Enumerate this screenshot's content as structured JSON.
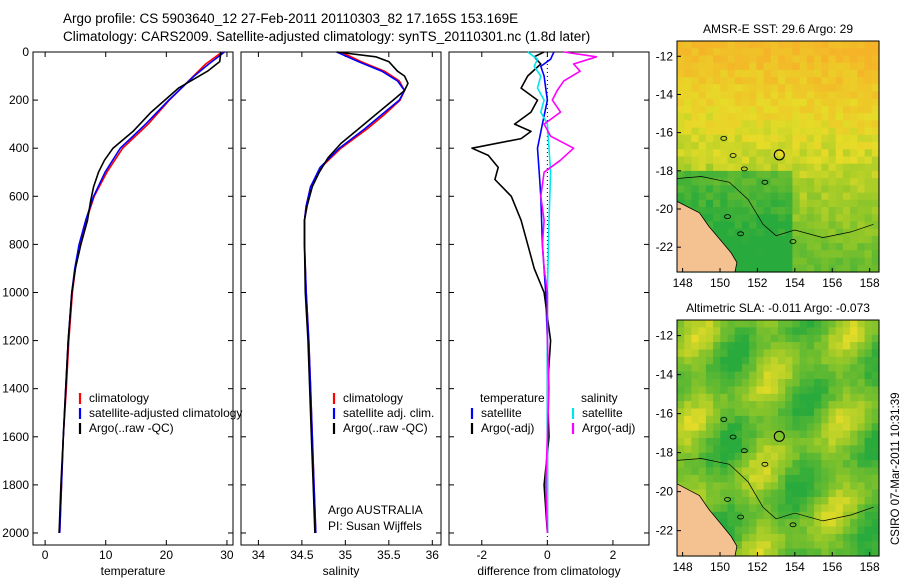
{
  "figure": {
    "title_line1": "Argo profile: CS 5903640_12 27-Feb-2011 20110303_82 17.165S 153.169E",
    "title_line2": "Climatology: CARS2009. Satellite-adjusted climatology: synTS_20110301.nc (1.8d later)",
    "credit": "CSIRO 07-Mar-2011 10:31:39",
    "colors": {
      "climatology": "#ff0000",
      "satellite": "#0000ff",
      "argo": "#000000",
      "sat_salinity": "#00e5ee",
      "argo_salinity": "#ff00ff",
      "land": "#f4c290"
    }
  },
  "chart_data": [
    {
      "type": "line",
      "name": "temperature",
      "xlabel": "temperature",
      "xlim": [
        -2,
        31
      ],
      "xticks": [
        0,
        10,
        20,
        30
      ],
      "ylim": [
        0,
        2050
      ],
      "y_reversed": true,
      "yticks": [
        0,
        200,
        400,
        600,
        800,
        1000,
        1200,
        1400,
        1600,
        1800,
        2000
      ],
      "legend": [
        "climatology",
        "satellite-adjusted climatology",
        "Argo(..raw -QC)"
      ],
      "series": [
        {
          "name": "climatology",
          "color_key": "climatology",
          "y": [
            0,
            50,
            100,
            200,
            300,
            400,
            500,
            600,
            700,
            800,
            900,
            1000,
            1200,
            1400,
            1600,
            1800,
            2000
          ],
          "x": [
            29.2,
            26.5,
            24.5,
            20.5,
            17.0,
            12.8,
            10.2,
            8.1,
            6.8,
            5.7,
            5.0,
            4.5,
            3.9,
            3.5,
            3.0,
            2.7,
            2.4
          ]
        },
        {
          "name": "satellite",
          "color_key": "satellite",
          "y": [
            0,
            50,
            100,
            200,
            300,
            400,
            500,
            600,
            700,
            800,
            900,
            1000,
            1200,
            1400,
            1600,
            1800,
            2000
          ],
          "x": [
            29.6,
            27.0,
            24.6,
            20.4,
            16.6,
            12.4,
            9.9,
            8.0,
            6.7,
            5.6,
            4.9,
            4.4,
            3.8,
            3.4,
            3.0,
            2.7,
            2.4
          ]
        },
        {
          "name": "argo",
          "color_key": "argo",
          "y": [
            0,
            40,
            80,
            150,
            250,
            330,
            400,
            450,
            500,
            560,
            620,
            700,
            800,
            900,
            1000,
            1200,
            1400,
            1600,
            1800,
            2000
          ],
          "x": [
            29.0,
            28.8,
            26.8,
            22.0,
            17.5,
            14.5,
            11.2,
            9.8,
            8.8,
            8.0,
            7.5,
            7.0,
            5.9,
            5.0,
            4.4,
            3.8,
            3.4,
            3.0,
            2.6,
            2.3
          ]
        }
      ]
    },
    {
      "type": "line",
      "name": "salinity",
      "xlabel": "salinity",
      "xlim": [
        33.8,
        36.1
      ],
      "xticks": [
        34,
        34.5,
        35,
        35.5,
        36
      ],
      "ylim": [
        0,
        2050
      ],
      "y_reversed": true,
      "legend": [
        "climatology",
        "satellite adj. clim.",
        "Argo(..raw -QC)"
      ],
      "annotation": [
        "Argo AUSTRALIA",
        "PI: Susan Wijffels"
      ],
      "series": [
        {
          "name": "climatology",
          "color_key": "climatology",
          "y": [
            0,
            40,
            80,
            120,
            160,
            200,
            260,
            320,
            400,
            480,
            560,
            640,
            700,
            800,
            1000,
            1200,
            1400,
            1600,
            1800,
            2000
          ],
          "x": [
            34.95,
            35.18,
            35.45,
            35.62,
            35.68,
            35.63,
            35.45,
            35.25,
            34.95,
            34.72,
            34.6,
            34.55,
            34.53,
            34.53,
            34.55,
            34.58,
            34.6,
            34.62,
            34.64,
            34.66
          ]
        },
        {
          "name": "satellite",
          "color_key": "satellite",
          "y": [
            0,
            40,
            80,
            120,
            160,
            200,
            260,
            320,
            400,
            480,
            560,
            640,
            700,
            800,
            1000,
            1200,
            1400,
            1600,
            1800,
            2000
          ],
          "x": [
            34.9,
            35.15,
            35.42,
            35.6,
            35.68,
            35.62,
            35.42,
            35.22,
            34.93,
            34.71,
            34.6,
            34.55,
            34.53,
            34.53,
            34.55,
            34.58,
            34.6,
            34.62,
            34.64,
            34.66
          ]
        },
        {
          "name": "argo",
          "color_key": "argo",
          "y": [
            0,
            20,
            40,
            60,
            80,
            100,
            130,
            160,
            200,
            260,
            320,
            380,
            440,
            500,
            560,
            640,
            700,
            800,
            1000,
            1200,
            1400,
            1600,
            1800,
            2000
          ],
          "x": [
            34.9,
            35.35,
            35.5,
            35.55,
            35.6,
            35.68,
            35.72,
            35.68,
            35.55,
            35.35,
            35.15,
            34.95,
            34.8,
            34.7,
            34.62,
            34.56,
            34.53,
            34.53,
            34.54,
            34.57,
            34.59,
            34.61,
            34.63,
            34.65
          ]
        }
      ]
    },
    {
      "type": "line",
      "name": "difference",
      "xlabel": "difference from climatology",
      "xlim": [
        -3,
        3.1
      ],
      "xticks": [
        -2,
        0,
        2
      ],
      "ylim": [
        0,
        2050
      ],
      "y_reversed": true,
      "legend_headers": [
        "temperature",
        "salinity"
      ],
      "legend": [
        "satellite",
        "Argo(-adj)",
        "satellite",
        "Argo(-adj)"
      ],
      "series": [
        {
          "name": "temp satellite",
          "color_key": "satellite",
          "y": [
            0,
            30,
            60,
            100,
            150,
            200,
            300,
            400,
            500,
            600,
            800,
            1000,
            1200,
            1500,
            1800,
            2000
          ],
          "x": [
            0.2,
            0.1,
            -0.2,
            -0.1,
            -0.05,
            0,
            -0.15,
            -0.3,
            -0.25,
            -0.2,
            -0.15,
            -0.05,
            0,
            0,
            0,
            0
          ]
        },
        {
          "name": "temp argo",
          "color_key": "argo",
          "y": [
            0,
            20,
            50,
            100,
            150,
            200,
            250,
            300,
            330,
            360,
            400,
            430,
            480,
            530,
            600,
            700,
            800,
            900,
            1000,
            1200,
            1400,
            1600,
            1800,
            2000
          ],
          "x": [
            -0.1,
            -0.4,
            -0.2,
            -0.6,
            -0.8,
            -0.3,
            -0.5,
            -1.0,
            -0.5,
            -0.8,
            -2.3,
            -1.8,
            -1.5,
            -1.6,
            -1.1,
            -0.8,
            -0.6,
            -0.4,
            -0.1,
            0.1,
            0,
            0.05,
            -0.1,
            0
          ]
        },
        {
          "name": "sal satellite",
          "color_key": "sat_salinity",
          "y": [
            0,
            30,
            60,
            100,
            150,
            200,
            250,
            300,
            400,
            500,
            700,
            1000,
            1400,
            1800,
            2000
          ],
          "x": [
            -0.6,
            -0.3,
            -0.4,
            -0.2,
            -0.3,
            -0.1,
            -0.2,
            0,
            0.05,
            0.1,
            0.05,
            0,
            0,
            0,
            0
          ]
        },
        {
          "name": "sal argo",
          "color_key": "argo_salinity",
          "y": [
            0,
            20,
            50,
            80,
            120,
            160,
            200,
            250,
            300,
            350,
            400,
            450,
            500,
            600,
            700,
            800,
            900,
            1000,
            1200,
            1400,
            1800,
            2000
          ],
          "x": [
            0.5,
            1.5,
            0.8,
            1.0,
            0.5,
            0.3,
            0.15,
            0.4,
            -0.1,
            0.1,
            0.8,
            0.4,
            -0.1,
            -0.2,
            -0.1,
            -0.15,
            -0.1,
            0,
            0,
            0.05,
            -0.05,
            0
          ]
        }
      ]
    },
    {
      "type": "heatmap",
      "name": "sst_map",
      "title": "AMSR-E SST: 29.6 Argo: 29",
      "xticks": [
        148,
        150,
        152,
        154,
        156,
        158
      ],
      "yticks": [
        -12,
        -14,
        -16,
        -18,
        -20,
        -22
      ],
      "xlim": [
        147.7,
        158.5
      ],
      "ylim": [
        -23.3,
        -11.2
      ],
      "float_position": [
        153.169,
        -17.165
      ]
    },
    {
      "type": "heatmap",
      "name": "sla_map",
      "title": "Altimetric SLA: -0.011 Argo: -0.073",
      "xticks": [
        148,
        150,
        152,
        154,
        156,
        158
      ],
      "yticks": [
        -12,
        -14,
        -16,
        -18,
        -20,
        -22
      ],
      "xlim": [
        147.7,
        158.5
      ],
      "ylim": [
        -23.3,
        -11.2
      ],
      "float_position": [
        153.169,
        -17.165
      ]
    }
  ]
}
